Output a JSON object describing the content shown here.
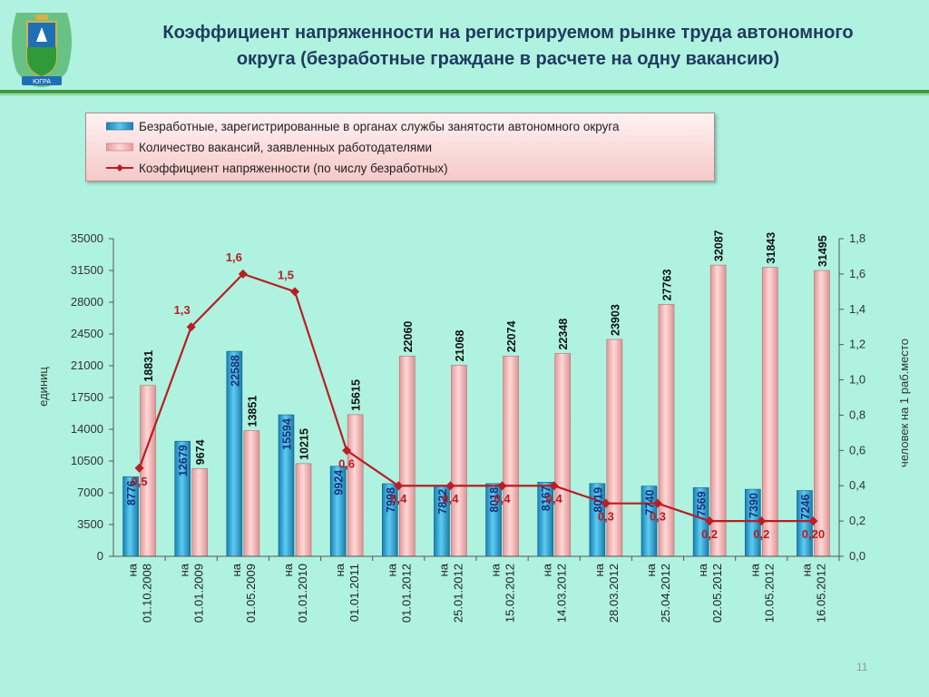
{
  "title": {
    "line1": "Коэффициент напряженности на регистрируемом рынке труда автономного",
    "line2": "округа (безработные граждане в расчете на одну вакансию)"
  },
  "logo": {
    "text": "ЮГРА"
  },
  "page_number": "11",
  "colors": {
    "background": "#aff2df",
    "unemployed_bar": "#2aa6d6",
    "vacancies_bar": "#f3b2b2",
    "ratio_line": "#b81e24",
    "header_rule": "#3f9a3c"
  },
  "legend": {
    "items": [
      {
        "label": "Безработные, зарегистрированные в органах службы занятости автономного округа",
        "key": "unemployed"
      },
      {
        "label": "Количество вакансий, заявленных работодателями",
        "key": "vacancies"
      },
      {
        "label": "Коэффициент напряженности (по числу безработных)",
        "key": "ratio"
      }
    ]
  },
  "chart_data": {
    "type": "bar",
    "ylabel_left": "единиц",
    "ylabel_right": "человек на 1 раб.место",
    "ylim_left": [
      0,
      35000
    ],
    "ylim_right": [
      0,
      1.8
    ],
    "left_ticks": [
      "0",
      "3500",
      "7000",
      "10500",
      "14000",
      "17500",
      "21000",
      "24500",
      "28000",
      "31500",
      "35000"
    ],
    "right_ticks": [
      "0,0",
      "0,2",
      "0,4",
      "0,6",
      "0,8",
      "1,0",
      "1,2",
      "1,4",
      "1,6",
      "1,8"
    ],
    "categories": [
      [
        "на",
        "01.10.2008"
      ],
      [
        "на",
        "01.01.2009"
      ],
      [
        "на",
        "01.05.2009"
      ],
      [
        "на",
        "01.01.2010"
      ],
      [
        "на",
        "01.01.2011"
      ],
      [
        "на",
        "01.01.2012"
      ],
      [
        "на",
        "25.01.2012"
      ],
      [
        "на",
        "15.02.2012"
      ],
      [
        "на",
        "14.03.2012"
      ],
      [
        "на",
        "28.03.2012"
      ],
      [
        "на",
        "25.04.2012"
      ],
      [
        "на",
        "02.05.2012"
      ],
      [
        "на",
        "10.05.2012"
      ],
      [
        "на",
        "16.05.2012"
      ]
    ],
    "series": [
      {
        "name": "Безработные, зарегистрированные в органах службы занятости автономного округа",
        "type": "bar",
        "axis": "left",
        "values": [
          8776,
          12679,
          22588,
          15594,
          9924,
          7998,
          7822,
          8018,
          8167,
          8019,
          7740,
          7569,
          7390,
          7246
        ],
        "labels": [
          "8776",
          "12679",
          "22588",
          "15594",
          "9924",
          "7998",
          "7822",
          "8018",
          "8167",
          "8019",
          "7740",
          "7569",
          "7390",
          "7246"
        ]
      },
      {
        "name": "Количество вакансий, заявленных работодателями",
        "type": "bar",
        "axis": "left",
        "values": [
          18831,
          9674,
          13851,
          10215,
          15615,
          22060,
          21068,
          22074,
          22348,
          23903,
          27763,
          32087,
          31843,
          31495
        ],
        "labels": [
          "18831",
          "9674",
          "13851",
          "10215",
          "15615",
          "22060",
          "21068",
          "22074",
          "22348",
          "23903",
          "27763",
          "32087",
          "31843",
          "31495"
        ]
      },
      {
        "name": "Коэффициент напряженности (по числу безработных)",
        "type": "line",
        "axis": "right",
        "values": [
          0.5,
          1.3,
          1.6,
          1.5,
          0.6,
          0.4,
          0.4,
          0.4,
          0.4,
          0.3,
          0.3,
          0.2,
          0.2,
          0.2
        ],
        "labels": [
          "0,5",
          "1,3",
          "1,6",
          "1,5",
          "0,6",
          "0,4",
          "0,4",
          "0,4",
          "0,4",
          "0,3",
          "0,3",
          "0,2",
          "0,2",
          "0,20"
        ]
      }
    ]
  }
}
